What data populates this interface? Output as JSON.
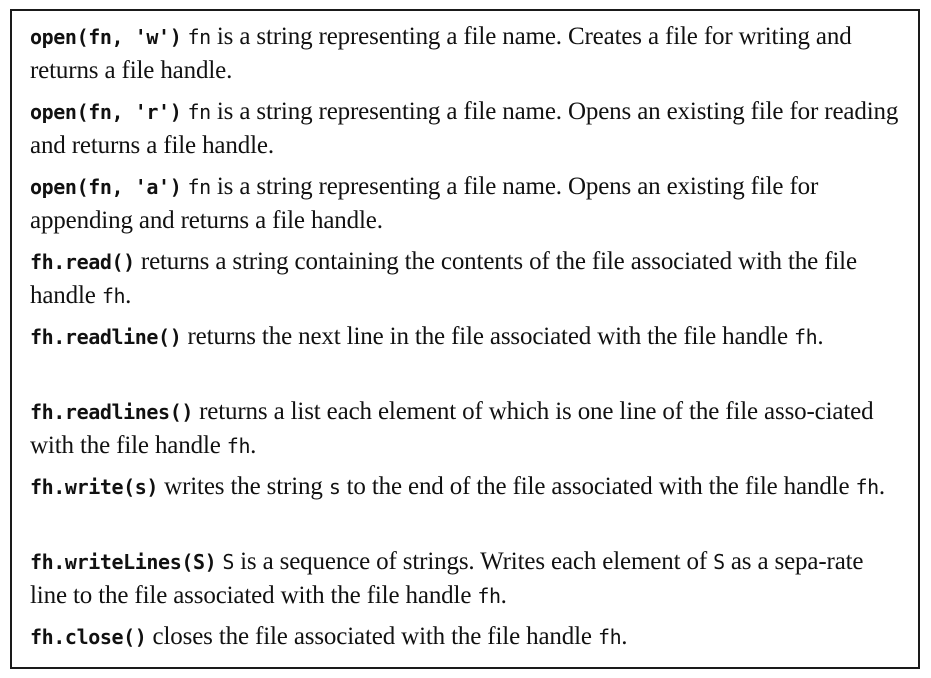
{
  "entries": [
    {
      "signature": "open(fn, 'w')",
      "parts": [
        {
          "code": "fn"
        },
        {
          "text": " is a string representing a file name. Creates a file for writing and returns a file handle."
        }
      ]
    },
    {
      "signature": "open(fn, 'r')",
      "parts": [
        {
          "code": "fn"
        },
        {
          "text": " is a string representing a file name. Opens an existing file for reading and returns a file handle."
        }
      ]
    },
    {
      "signature": "open(fn, 'a')",
      "parts": [
        {
          "code": "fn"
        },
        {
          "text": " is a string representing a file name. Opens an existing file for appending and returns a file handle."
        }
      ]
    },
    {
      "signature": "fh.read()",
      "parts": [
        {
          "text": "returns a string containing the contents of the file associated with the file handle "
        },
        {
          "code": "fh"
        },
        {
          "text": "."
        }
      ]
    },
    {
      "signature": "fh.readline()",
      "parts": [
        {
          "text": "returns the next line in the file associated with the file handle "
        },
        {
          "code": "fh"
        },
        {
          "text": "."
        }
      ]
    },
    {
      "signature": "fh.readlines()",
      "parts": [
        {
          "text": "returns a list each element of which is one line of the file asso-ciated with the file handle "
        },
        {
          "code": "fh"
        },
        {
          "text": "."
        }
      ]
    },
    {
      "signature": "fh.write(s)",
      "parts": [
        {
          "text": "writes the string "
        },
        {
          "code": "s"
        },
        {
          "text": " to the end of the file associated with the file handle "
        },
        {
          "code": "fh"
        },
        {
          "text": "."
        }
      ]
    },
    {
      "signature": "fh.writeLines(S)",
      "parts": [
        {
          "code": "S"
        },
        {
          "text": " is a sequence of strings. Writes each element of "
        },
        {
          "code": "S"
        },
        {
          "text": " as a sepa-rate line to the file associated with the file handle "
        },
        {
          "code": "fh"
        },
        {
          "text": "."
        }
      ]
    },
    {
      "signature": "fh.close()",
      "parts": [
        {
          "text": "closes the file associated with the file handle "
        },
        {
          "code": "fh"
        },
        {
          "text": "."
        }
      ]
    }
  ]
}
